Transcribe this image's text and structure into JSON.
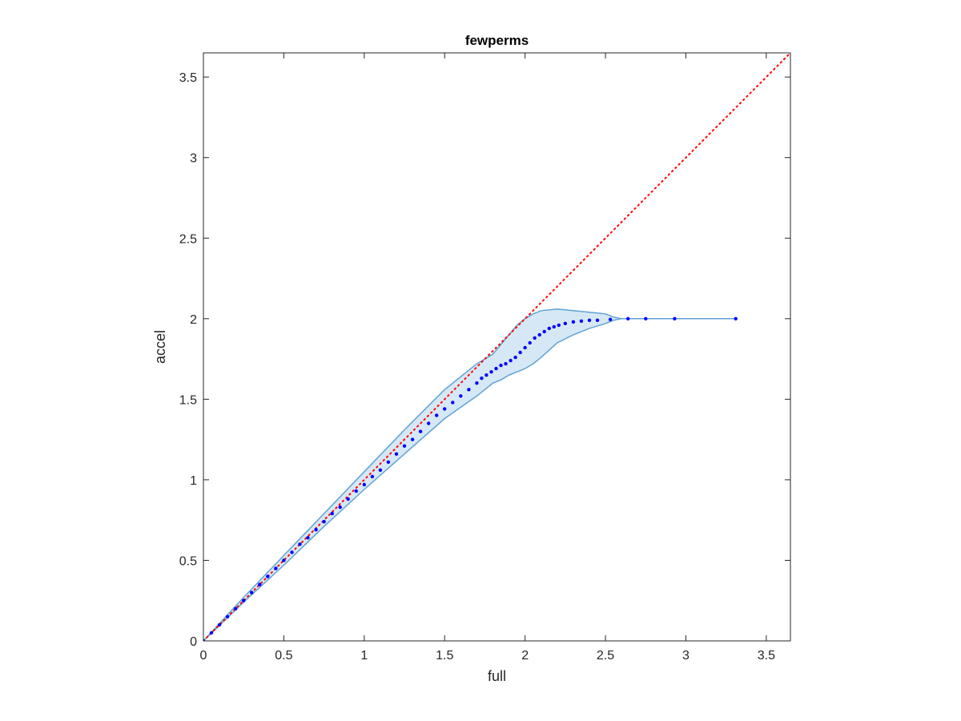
{
  "chart_data": {
    "type": "scatter",
    "title": "fewperms",
    "xlabel": "full",
    "ylabel": "accel",
    "xlim": [
      0,
      3.65
    ],
    "ylim": [
      0,
      3.65
    ],
    "xticks": [
      0,
      0.5,
      1,
      1.5,
      2,
      2.5,
      3,
      3.5
    ],
    "yticks": [
      0,
      0.5,
      1,
      1.5,
      2,
      2.5,
      3,
      3.5
    ],
    "xtick_labels": [
      "0",
      "0.5",
      "1",
      "1.5",
      "2",
      "2.5",
      "3",
      "3.5"
    ],
    "ytick_labels": [
      "0",
      "0.5",
      "1",
      "1.5",
      "2",
      "2.5",
      "3",
      "3.5"
    ],
    "grid": false,
    "box": true,
    "series": [
      {
        "role": "reference-line",
        "style": "dotted",
        "color": "#ff0000",
        "x": [
          0,
          3.65
        ],
        "y": [
          0,
          3.65
        ]
      },
      {
        "role": "confidence-band",
        "color": "#5fa2d5",
        "fill": "#d6e8f5",
        "x": [
          0,
          0.25,
          0.5,
          0.75,
          1.0,
          1.25,
          1.5,
          1.6,
          1.7,
          1.75,
          1.8,
          1.85,
          1.9,
          1.95,
          2.0,
          2.05,
          2.1,
          2.2,
          2.3,
          2.4,
          2.5,
          2.55,
          2.6,
          2.63,
          2.7,
          2.8,
          2.9,
          3.0,
          3.1,
          3.2,
          3.31
        ],
        "upper": [
          0,
          0.27,
          0.53,
          0.79,
          1.05,
          1.31,
          1.56,
          1.64,
          1.72,
          1.75,
          1.78,
          1.84,
          1.9,
          1.96,
          2.0,
          2.03,
          2.05,
          2.06,
          2.05,
          2.04,
          2.03,
          2.01,
          2.0,
          2.0,
          2.0,
          2.0,
          2.0,
          2.0,
          2.0,
          2.0,
          2.0
        ],
        "lower": [
          0,
          0.24,
          0.47,
          0.71,
          0.94,
          1.16,
          1.38,
          1.45,
          1.52,
          1.56,
          1.6,
          1.62,
          1.65,
          1.67,
          1.69,
          1.72,
          1.76,
          1.85,
          1.9,
          1.94,
          1.97,
          1.99,
          2.0,
          2.0,
          2.0,
          2.0,
          2.0,
          2.0,
          2.0,
          2.0,
          2.0
        ]
      },
      {
        "role": "points",
        "color": "#0000ff",
        "x": [
          0.0,
          0.05,
          0.1,
          0.15,
          0.2,
          0.25,
          0.3,
          0.35,
          0.4,
          0.45,
          0.5,
          0.55,
          0.6,
          0.65,
          0.7,
          0.75,
          0.8,
          0.85,
          0.9,
          0.95,
          1.0,
          1.05,
          1.1,
          1.15,
          1.2,
          1.25,
          1.3,
          1.35,
          1.4,
          1.45,
          1.5,
          1.55,
          1.6,
          1.65,
          1.7,
          1.73,
          1.76,
          1.79,
          1.82,
          1.85,
          1.88,
          1.91,
          1.94,
          1.97,
          2.0,
          2.03,
          2.06,
          2.09,
          2.12,
          2.15,
          2.18,
          2.21,
          2.25,
          2.3,
          2.35,
          2.4,
          2.45,
          2.53,
          2.64,
          2.75,
          2.93,
          3.31
        ],
        "y": [
          0.0,
          0.05,
          0.1,
          0.15,
          0.2,
          0.25,
          0.3,
          0.35,
          0.4,
          0.45,
          0.5,
          0.55,
          0.6,
          0.64,
          0.69,
          0.74,
          0.79,
          0.83,
          0.88,
          0.93,
          0.97,
          1.02,
          1.06,
          1.11,
          1.16,
          1.21,
          1.25,
          1.3,
          1.35,
          1.4,
          1.44,
          1.48,
          1.52,
          1.56,
          1.6,
          1.63,
          1.65,
          1.67,
          1.69,
          1.71,
          1.72,
          1.74,
          1.76,
          1.79,
          1.82,
          1.85,
          1.88,
          1.9,
          1.92,
          1.94,
          1.95,
          1.96,
          1.97,
          1.98,
          1.985,
          1.99,
          1.99,
          1.995,
          2.0,
          2.0,
          2.0,
          2.0
        ]
      }
    ]
  }
}
